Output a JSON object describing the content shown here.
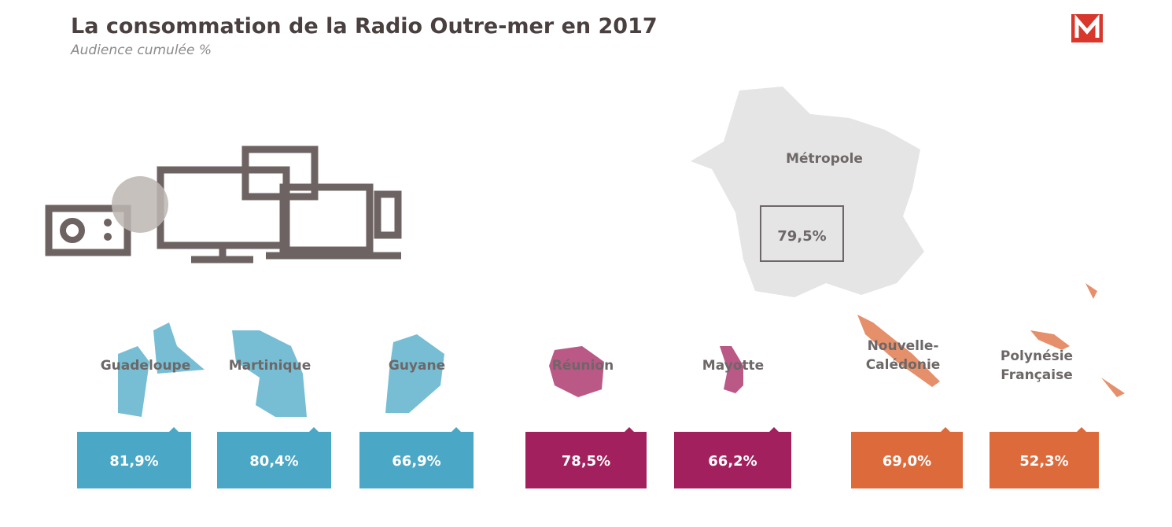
{
  "header": {
    "title": "La consommation de la Radio Outre-mer en 2017",
    "subtitle": "Audience cumulée %"
  },
  "metropole": {
    "name": "Métropole",
    "value": "79,5%"
  },
  "regions": [
    {
      "name": "Guadeloupe",
      "value": "81,9%",
      "color": "#4aa8c6"
    },
    {
      "name": "Martinique",
      "value": "80,4%",
      "color": "#4aa8c6"
    },
    {
      "name": "Guyane",
      "value": "66,9%",
      "color": "#4aa8c6"
    },
    {
      "name": "Réunion",
      "value": "78,5%",
      "color": "#a3205e"
    },
    {
      "name": "Mayotte",
      "value": "66,2%",
      "color": "#a3205e"
    },
    {
      "name": "Nouvelle-Calédonie",
      "value": "69,0%",
      "color": "#dd6a3a"
    },
    {
      "name": "Polynésie Française",
      "value": "52,3%",
      "color": "#dd6a3a"
    }
  ]
}
